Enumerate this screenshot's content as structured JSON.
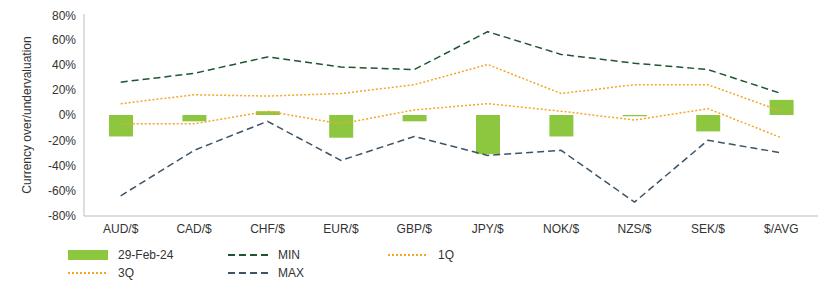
{
  "chart_data": {
    "type": "bar",
    "y_label": "Currency over/undervaluation",
    "categories": [
      "AUD/$",
      "CAD/$",
      "CHF/$",
      "EUR/$",
      "GBP/$",
      "JPY/$",
      "NOK/$",
      "NZS/$",
      "SEK/$",
      "$/AVG"
    ],
    "series": [
      {
        "name": "29-Feb-24",
        "type": "bar",
        "color": "#8dc63f",
        "values": [
          -17,
          -5,
          3,
          -18,
          -5,
          -31,
          -17,
          -1,
          -13,
          12
        ]
      },
      {
        "name": "MIN",
        "type": "line",
        "color": "#1e5631",
        "line_style": "dashed",
        "values": [
          26,
          33,
          46,
          38,
          36,
          66,
          48,
          41,
          36,
          17
        ]
      },
      {
        "name": "1Q",
        "type": "line",
        "color": "#f5a623",
        "line_style": "dotted",
        "values": [
          -7,
          -7,
          3,
          -7,
          4,
          9,
          3,
          -4,
          5,
          -18
        ]
      },
      {
        "name": "3Q",
        "type": "line",
        "color": "#f5a623",
        "line_style": "dotted",
        "values": [
          9,
          16,
          15,
          17,
          24,
          40,
          17,
          24,
          24,
          3
        ]
      },
      {
        "name": "MAX",
        "type": "line",
        "color": "#3d5466",
        "line_style": "dashed",
        "values": [
          -64,
          -28,
          -5,
          -36,
          -17,
          -32,
          -28,
          -69,
          -20,
          -30
        ]
      }
    ],
    "ylim": [
      -80,
      80
    ],
    "yticks": [
      {
        "value": -80,
        "label": "-80%"
      },
      {
        "value": -60,
        "label": "-60%"
      },
      {
        "value": -40,
        "label": "-40%"
      },
      {
        "value": -20,
        "label": "-20%"
      },
      {
        "value": 0,
        "label": "0%"
      },
      {
        "value": 20,
        "label": "20%"
      },
      {
        "value": 40,
        "label": "40%"
      },
      {
        "value": 60,
        "label": "60%"
      },
      {
        "value": 80,
        "label": "80%"
      }
    ],
    "grid": false,
    "legend": "bottom"
  }
}
